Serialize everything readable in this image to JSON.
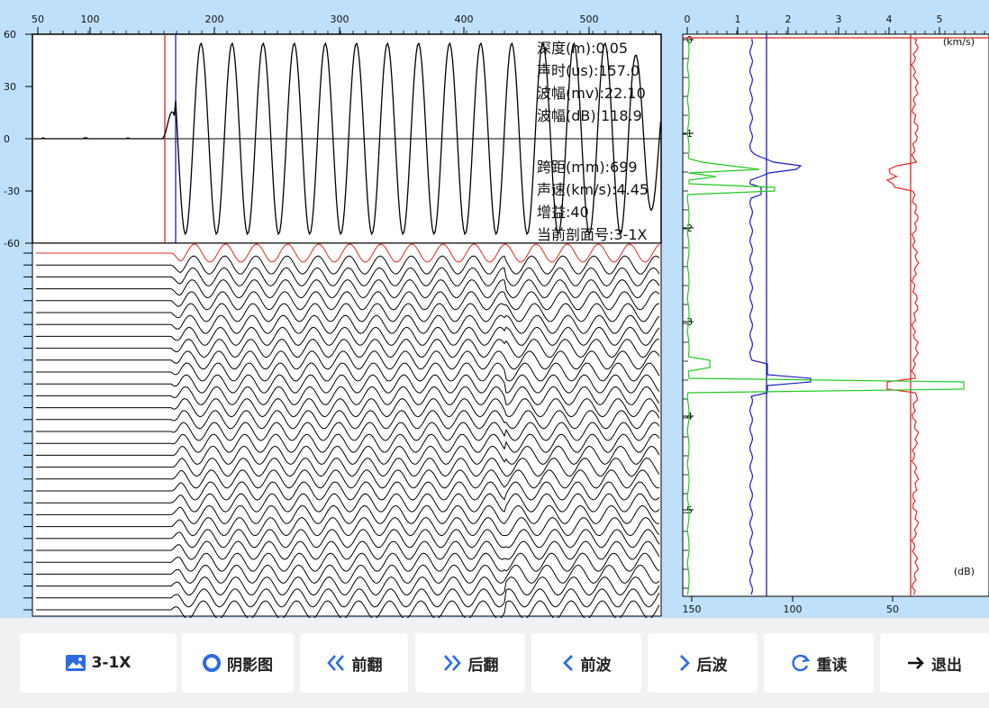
{
  "waveform_panel": {
    "x_ticks": [
      "50",
      "100",
      "200",
      "300",
      "400",
      "500"
    ],
    "y_ticks": [
      "60",
      "30",
      "0",
      "-30",
      "-60"
    ],
    "info": [
      {
        "label": "深度(m):",
        "value": "0.05"
      },
      {
        "label": "声时(us):",
        "value": "157.0"
      },
      {
        "label": "波幅(mv):",
        "value": "22.10"
      },
      {
        "label": "波幅(dB):",
        "value": "118.9"
      },
      {
        "label": "跨距(mm):",
        "value": "699"
      },
      {
        "label": "声速(km/s):",
        "value": "4.45"
      },
      {
        "label": "增益:",
        "value": "40"
      },
      {
        "label": "当前剖面号:",
        "value": "3-1X"
      }
    ]
  },
  "profile_panel": {
    "top_ticks": [
      "0",
      "1",
      "2",
      "3",
      "4",
      "5"
    ],
    "depth_ticks": [
      "0",
      "1",
      "2",
      "3",
      "4",
      "5"
    ],
    "bottom_ticks": [
      "150",
      "100",
      "50"
    ],
    "unit_top": "(km/s)",
    "unit_bottom": "(dB)"
  },
  "toolbar": {
    "buttons": [
      {
        "name": "profile-button",
        "label": "3-1X",
        "icon": "chart-image-icon"
      },
      {
        "name": "shadow-view-button",
        "label": "阴影图",
        "icon": "circle-dot-icon"
      },
      {
        "name": "page-prev-button",
        "label": "前翻",
        "icon": "double-chevron-left-icon"
      },
      {
        "name": "page-next-button",
        "label": "后翻",
        "icon": "double-chevron-right-icon"
      },
      {
        "name": "wave-prev-button",
        "label": "前波",
        "icon": "chevron-left-icon"
      },
      {
        "name": "wave-next-button",
        "label": "后波",
        "icon": "chevron-right-icon"
      },
      {
        "name": "reload-button",
        "label": "重读",
        "icon": "refresh-icon"
      },
      {
        "name": "exit-button",
        "label": "退出",
        "icon": "arrow-right-icon"
      }
    ]
  },
  "colors": {
    "accent": "#2d6be6",
    "velocity": "#1a1ad0",
    "amplitude": "#e8281e",
    "psd": "#22cc22",
    "bg": "#bfe0fa"
  }
}
